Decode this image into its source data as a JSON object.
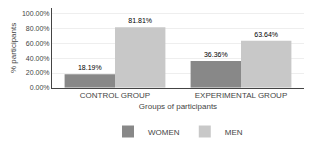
{
  "chart_data": {
    "type": "bar",
    "categories": [
      "CONTROL GROUP",
      "EXPERIMENTAL GROUP"
    ],
    "series": [
      {
        "name": "WOMEN",
        "color": "#888888",
        "values": [
          18.19,
          36.36
        ],
        "value_labels": [
          "18.19%",
          "36.36%"
        ]
      },
      {
        "name": "MEN",
        "color": "#c8c8c8",
        "values": [
          81.81,
          63.64
        ],
        "value_labels": [
          "81.81%",
          "63.64%"
        ]
      }
    ],
    "xlabel": "Groups of participants",
    "ylabel": "% participants",
    "ylim": [
      0,
      108
    ],
    "yticks": [
      {
        "value": 0,
        "label": "0.00%"
      },
      {
        "value": 20,
        "label": "20.00%"
      },
      {
        "value": 40,
        "label": "40.00%"
      },
      {
        "value": 60,
        "label": "60.00%"
      },
      {
        "value": 80,
        "label": "80.00%"
      },
      {
        "value": 100,
        "label": "100.00%"
      }
    ],
    "grid": true,
    "legend": "bottom",
    "data_labels": true
  }
}
